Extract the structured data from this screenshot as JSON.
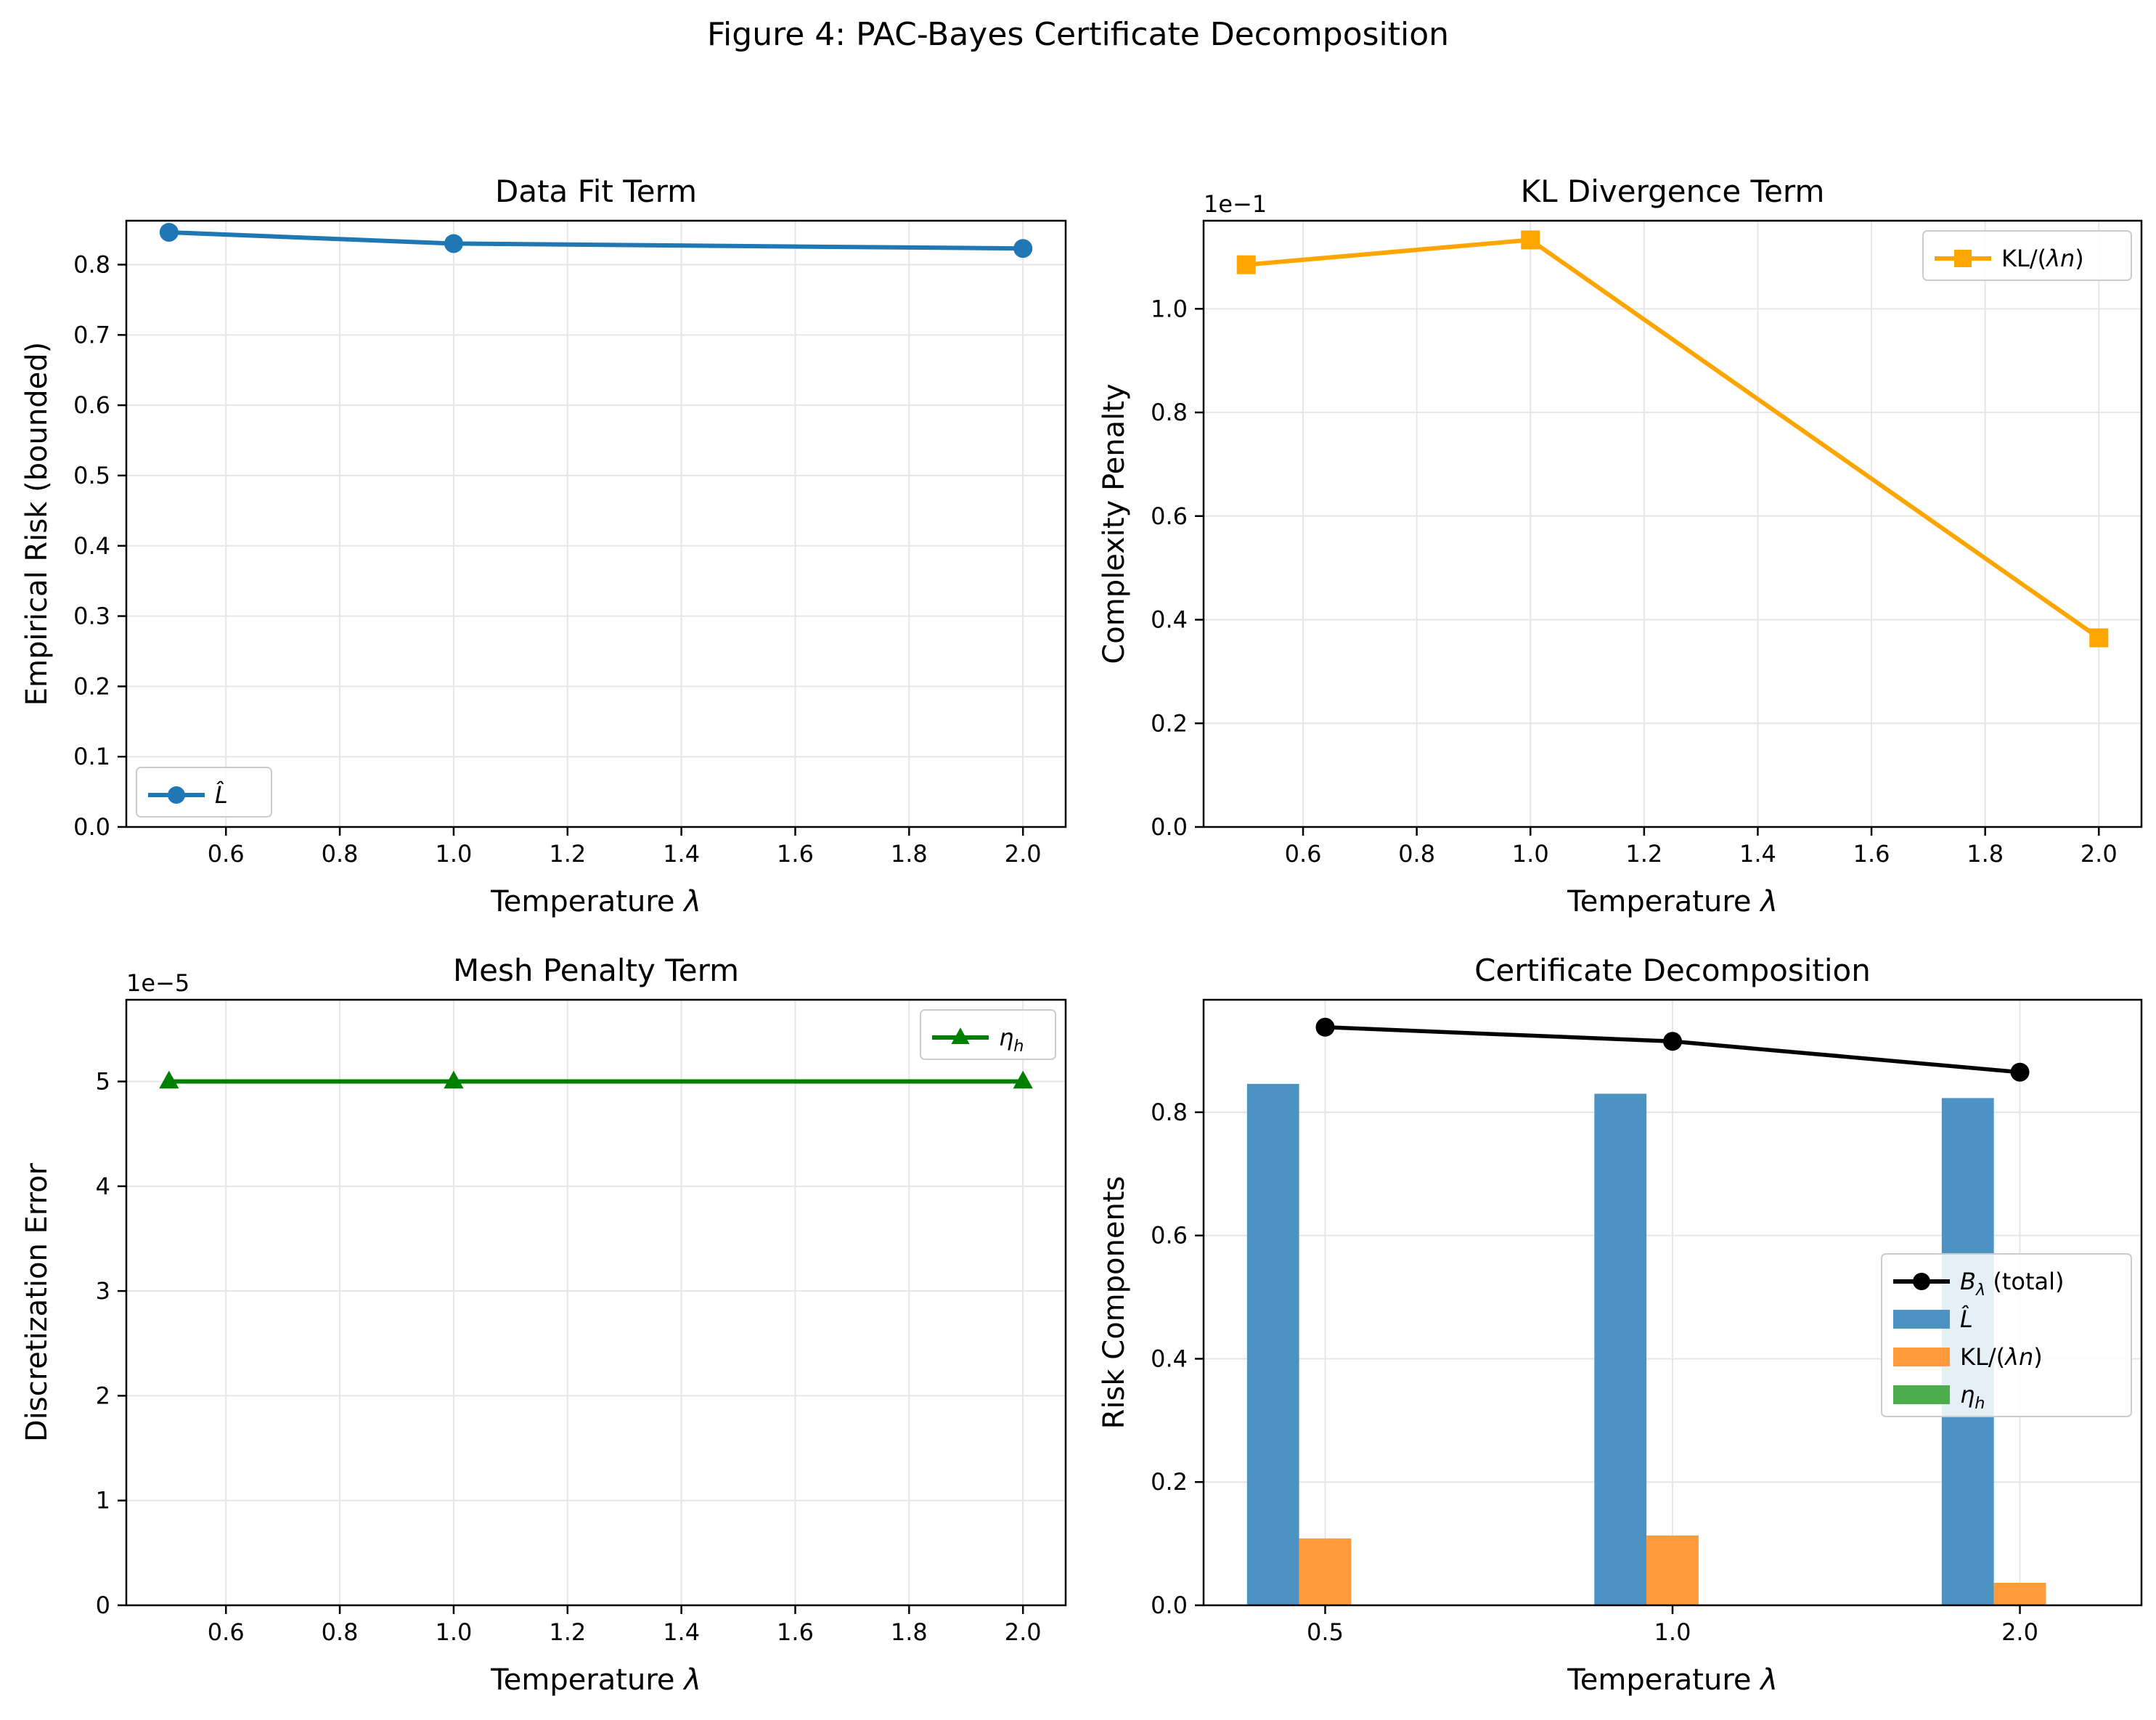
{
  "figure": {
    "title": "Figure 4: PAC-Bayes Certificate Decomposition"
  },
  "colors": {
    "blue": "#1f77b4",
    "orange": "#ffa500",
    "green": "#008000",
    "black": "#000000",
    "bar_blue": "#4c92c3",
    "bar_orange": "#ff9a3c",
    "bar_green": "#4cad4c",
    "grid": "#e6e6e6"
  },
  "chart_data": [
    {
      "id": "data-fit",
      "type": "line",
      "title": "Data Fit Term",
      "xlabel": "Temperature λ",
      "ylabel": "Empirical Risk (bounded)",
      "xlim": [
        0.425,
        2.075
      ],
      "ylim": [
        0,
        0.8625
      ],
      "xticks": [
        0.6,
        0.8,
        1.0,
        1.2,
        1.4,
        1.6,
        1.8,
        2.0
      ],
      "xtick_labels": [
        "0.6",
        "0.8",
        "1.0",
        "1.2",
        "1.4",
        "1.6",
        "1.8",
        "2.0"
      ],
      "yticks": [
        0,
        0.1,
        0.2,
        0.3,
        0.4,
        0.5,
        0.6,
        0.7,
        0.8
      ],
      "ytick_labels": [
        "0.0",
        "0.1",
        "0.2",
        "0.3",
        "0.4",
        "0.5",
        "0.6",
        "0.7",
        "0.8"
      ],
      "offset_label": "",
      "grid": true,
      "legend_position": "lower-left",
      "series": [
        {
          "name": "L̂",
          "marker": "circle",
          "color": "#1f77b4",
          "x": [
            0.5,
            1.0,
            2.0
          ],
          "y": [
            0.846,
            0.83,
            0.823
          ]
        }
      ]
    },
    {
      "id": "kl-divergence",
      "type": "line",
      "title": "KL Divergence Term",
      "xlabel": "Temperature λ",
      "ylabel": "Complexity Penalty",
      "xlim": [
        0.425,
        2.075
      ],
      "ylim": [
        0,
        1.17
      ],
      "xticks": [
        0.6,
        0.8,
        1.0,
        1.2,
        1.4,
        1.6,
        1.8,
        2.0
      ],
      "xtick_labels": [
        "0.6",
        "0.8",
        "1.0",
        "1.2",
        "1.4",
        "1.6",
        "1.8",
        "2.0"
      ],
      "yticks": [
        0,
        0.2,
        0.4,
        0.6,
        0.8,
        1.0
      ],
      "ytick_labels": [
        "0.0",
        "0.2",
        "0.4",
        "0.6",
        "0.8",
        "1.0"
      ],
      "offset_label": "1e−1",
      "grid": true,
      "legend_position": "upper-right",
      "series": [
        {
          "name": "KL/(λn)",
          "marker": "square",
          "color": "#ffa500",
          "x": [
            0.5,
            1.0,
            2.0
          ],
          "y": [
            1.085,
            1.133,
            0.365
          ]
        }
      ]
    },
    {
      "id": "mesh-penalty",
      "type": "line",
      "title": "Mesh Penalty Term",
      "xlabel": "Temperature λ",
      "ylabel": "Discretization Error",
      "xlim": [
        0.425,
        2.075
      ],
      "ylim": [
        0,
        5.78
      ],
      "xticks": [
        0.6,
        0.8,
        1.0,
        1.2,
        1.4,
        1.6,
        1.8,
        2.0
      ],
      "xtick_labels": [
        "0.6",
        "0.8",
        "1.0",
        "1.2",
        "1.4",
        "1.6",
        "1.8",
        "2.0"
      ],
      "yticks": [
        0,
        1,
        2,
        3,
        4,
        5
      ],
      "ytick_labels": [
        "0",
        "1",
        "2",
        "3",
        "4",
        "5"
      ],
      "offset_label": "1e−5",
      "grid": true,
      "legend_position": "upper-right",
      "series": [
        {
          "name": "ηh",
          "marker": "triangle",
          "color": "#008000",
          "x": [
            0.5,
            1.0,
            2.0
          ],
          "y": [
            5.0,
            5.0,
            5.0
          ]
        }
      ]
    },
    {
      "id": "certificate",
      "type": "bar",
      "title": "Certificate Decomposition",
      "xlabel": "Temperature λ",
      "ylabel": "Risk Components",
      "categories": [
        "0.5",
        "1.0",
        "2.0"
      ],
      "xlim": [
        -0.35,
        2.35
      ],
      "ylim": [
        0,
        0.9825
      ],
      "yticks": [
        0,
        0.2,
        0.4,
        0.6,
        0.8
      ],
      "ytick_labels": [
        "0.0",
        "0.2",
        "0.4",
        "0.6",
        "0.8"
      ],
      "grid": true,
      "legend_position": "center-right",
      "bar_width": 0.15,
      "bars": [
        {
          "name": "L̂",
          "color": "#4c92c3",
          "offset": -0.15,
          "values": [
            0.846,
            0.83,
            0.823
          ]
        },
        {
          "name": "KL/(λn)",
          "color": "#ff9a3c",
          "offset": 0.0,
          "values": [
            0.1085,
            0.1133,
            0.0365
          ]
        },
        {
          "name": "ηh",
          "color": "#4cad4c",
          "offset": 0.15,
          "values": [
            5e-05,
            5e-05,
            5e-05
          ]
        }
      ],
      "line": {
        "name": "Bλ (total)",
        "color": "#000000",
        "values": [
          0.938,
          0.915,
          0.865
        ]
      }
    }
  ]
}
